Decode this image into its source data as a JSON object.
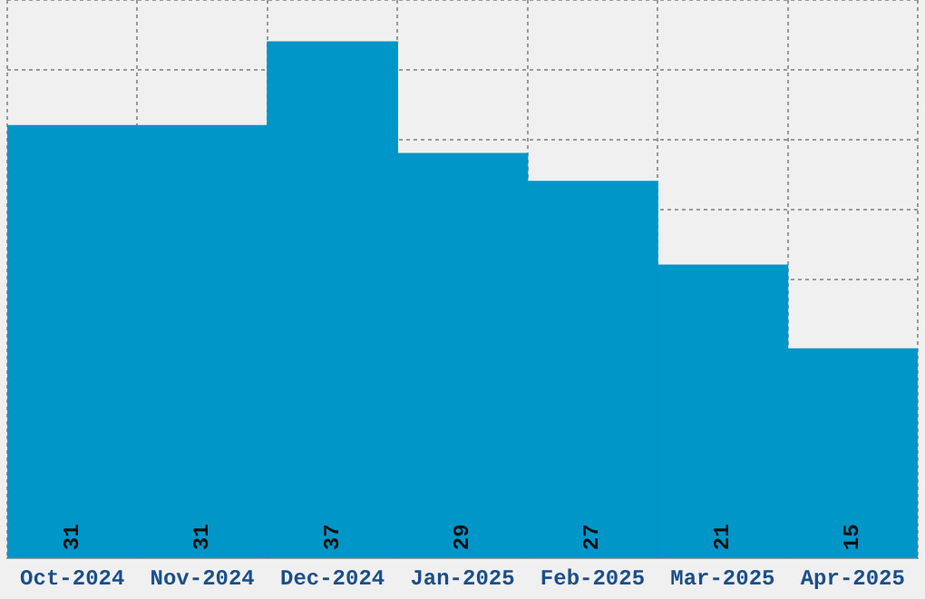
{
  "chart_data": {
    "type": "bar",
    "categories": [
      "Oct-2024",
      "Nov-2024",
      "Dec-2024",
      "Jan-2025",
      "Feb-2025",
      "Mar-2025",
      "Apr-2025"
    ],
    "values": [
      31,
      31,
      37,
      29,
      27,
      21,
      15
    ],
    "color": "#0096c8",
    "grid": true,
    "data_labels": true,
    "tick_labels": "x"
  }
}
